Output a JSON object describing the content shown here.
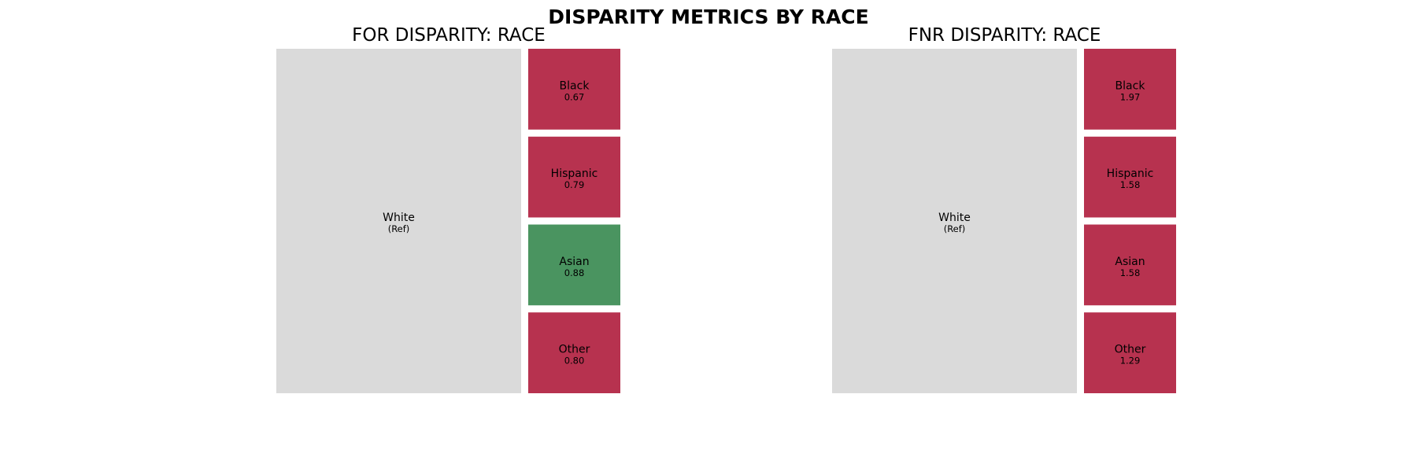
{
  "title": "DISPARITY METRICS BY RACE",
  "colors": {
    "reference": "#dadada",
    "worse": "#b7324f",
    "better": "#4a9460",
    "background": "#ffffff",
    "text": "#000000"
  },
  "chart_data": [
    {
      "type": "treemap",
      "title": "FOR DISPARITY: RACE",
      "reference": {
        "label": "White",
        "value_text": "(Ref)"
      },
      "groups": [
        {
          "label": "Black",
          "value": 0.67,
          "value_text": "0.67",
          "status": "worse"
        },
        {
          "label": "Hispanic",
          "value": 0.79,
          "value_text": "0.79",
          "status": "worse"
        },
        {
          "label": "Asian",
          "value": 0.88,
          "value_text": "0.88",
          "status": "better"
        },
        {
          "label": "Other",
          "value": 0.8,
          "value_text": "0.80",
          "status": "worse"
        }
      ]
    },
    {
      "type": "treemap",
      "title": "FNR DISPARITY: RACE",
      "reference": {
        "label": "White",
        "value_text": "(Ref)"
      },
      "groups": [
        {
          "label": "Black",
          "value": 1.97,
          "value_text": "1.97",
          "status": "worse"
        },
        {
          "label": "Hispanic",
          "value": 1.58,
          "value_text": "1.58",
          "status": "worse"
        },
        {
          "label": "Asian",
          "value": 1.58,
          "value_text": "1.58",
          "status": "worse"
        },
        {
          "label": "Other",
          "value": 1.29,
          "value_text": "1.29",
          "status": "worse"
        }
      ]
    }
  ]
}
